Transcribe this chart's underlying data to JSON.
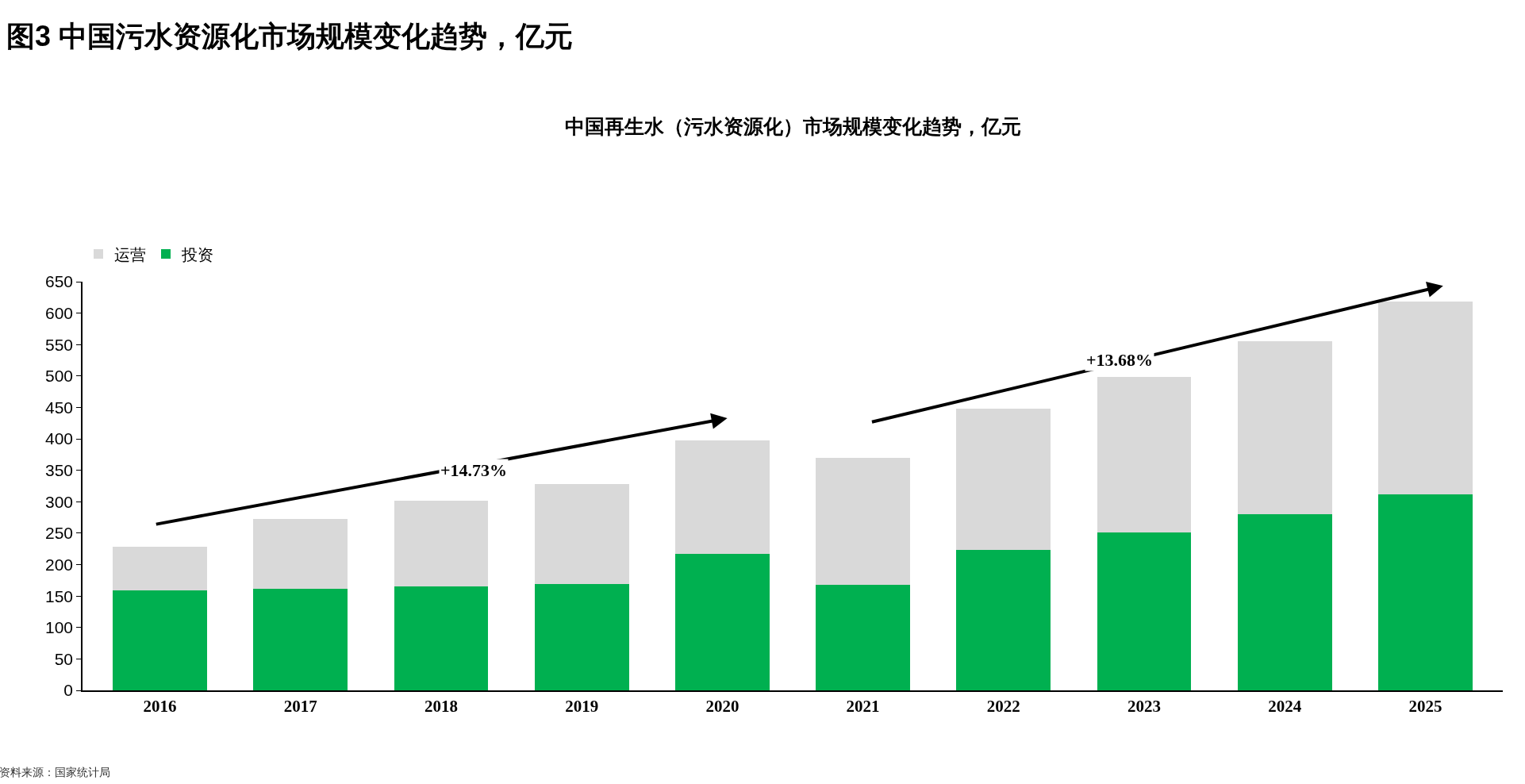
{
  "chart_data": {
    "type": "bar",
    "title": "图3 中国污水资源化市场规模变化趋势，亿元",
    "subtitle": "中国再生水（污水资源化）市场规模变化趋势，亿元",
    "categories": [
      "2016",
      "2017",
      "2018",
      "2019",
      "2020",
      "2021",
      "2022",
      "2023",
      "2024",
      "2025"
    ],
    "series": [
      {
        "name": "投资",
        "color": "#00b050",
        "values": [
          159,
          161,
          165,
          169,
          217,
          168,
          224,
          251,
          280,
          312
        ]
      },
      {
        "name": "运营",
        "color": "#d9d9d9",
        "values": [
          70,
          112,
          137,
          159,
          181,
          202,
          224,
          248,
          275,
          306
        ]
      }
    ],
    "stacked": true,
    "ylim": [
      0,
      650
    ],
    "yticks": [
      0,
      50,
      100,
      150,
      200,
      250,
      300,
      350,
      400,
      450,
      500,
      550,
      600,
      650
    ],
    "legend": "top left",
    "annotations": [
      "+14.73%",
      "+13.68%",
      "资料来源：国家统计局"
    ]
  }
}
